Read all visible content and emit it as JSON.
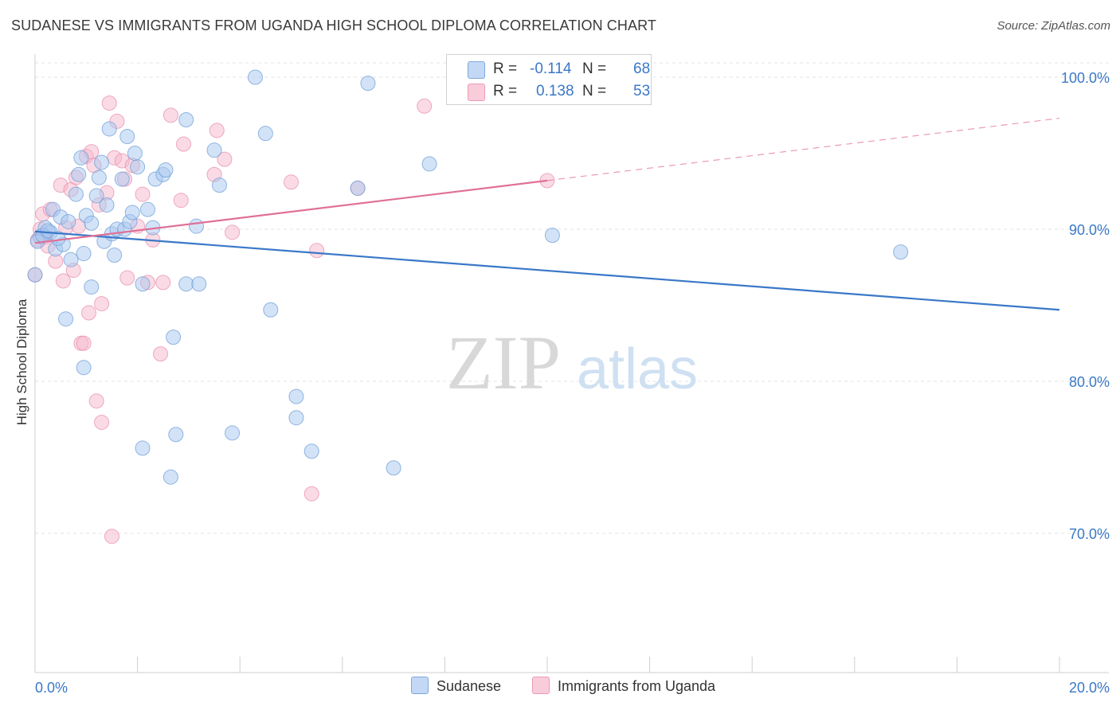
{
  "header": {
    "title": "SUDANESE VS IMMIGRANTS FROM UGANDA HIGH SCHOOL DIPLOMA CORRELATION CHART",
    "source": "Source: ZipAtlas.com"
  },
  "watermark": {
    "zip": "ZIP",
    "atlas": "atlas"
  },
  "legend": {
    "rows": [
      {
        "r_label": "R =",
        "r_value": "-0.114",
        "n_label": "N =",
        "n_value": "68",
        "color": "#a8c8f0"
      },
      {
        "r_label": "R =",
        "r_value": "0.138",
        "n_label": "N =",
        "n_value": "53",
        "color": "#f5b8cb"
      }
    ]
  },
  "bottom_legend": {
    "series1": "Sudanese",
    "series2": "Immigrants from Uganda"
  },
  "chart_data": {
    "type": "scatter",
    "title": "SUDANESE VS IMMIGRANTS FROM UGANDA HIGH SCHOOL DIPLOMA CORRELATION CHART",
    "xlabel": "",
    "ylabel": "High School Diploma",
    "xlim": [
      0,
      20
    ],
    "ylim": [
      60,
      102
    ],
    "x_tick_labels": [
      "0.0%",
      "20.0%"
    ],
    "y_ticks": [
      70,
      80,
      90,
      100
    ],
    "y_tick_labels": [
      "70.0%",
      "80.0%",
      "90.0%",
      "100.0%"
    ],
    "grid": true,
    "legend_position": "top-center",
    "colors": {
      "series1_fill": "#a8c8f0",
      "series1_line": "#3a78c8",
      "series2_fill": "#f5b8cb",
      "series2_line": "#e07098",
      "axis_text": "#3a78c8"
    },
    "series": [
      {
        "name": "Sudanese",
        "points": [
          [
            0.1,
            89.5
          ],
          [
            0.2,
            90.1
          ],
          [
            0.3,
            89.8
          ],
          [
            0.35,
            91.3
          ],
          [
            0.4,
            88.7
          ],
          [
            0.5,
            90.8
          ],
          [
            0.55,
            89.0
          ],
          [
            0.6,
            84.1
          ],
          [
            0.7,
            88.0
          ],
          [
            0.8,
            92.3
          ],
          [
            0.85,
            93.6
          ],
          [
            0.9,
            94.7
          ],
          [
            0.95,
            88.4
          ],
          [
            0.95,
            80.9
          ],
          [
            1.0,
            90.9
          ],
          [
            1.1,
            86.2
          ],
          [
            1.1,
            90.4
          ],
          [
            1.2,
            92.2
          ],
          [
            1.25,
            93.4
          ],
          [
            1.3,
            94.4
          ],
          [
            1.35,
            89.2
          ],
          [
            1.4,
            91.6
          ],
          [
            1.45,
            96.6
          ],
          [
            1.5,
            89.7
          ],
          [
            1.55,
            88.3
          ],
          [
            1.6,
            90.0
          ],
          [
            1.7,
            93.3
          ],
          [
            1.75,
            90.0
          ],
          [
            1.8,
            96.1
          ],
          [
            1.85,
            90.5
          ],
          [
            1.9,
            91.1
          ],
          [
            1.95,
            95.0
          ],
          [
            2.0,
            94.1
          ],
          [
            2.1,
            86.4
          ],
          [
            2.1,
            75.6
          ],
          [
            2.2,
            91.3
          ],
          [
            2.3,
            90.1
          ],
          [
            2.35,
            93.3
          ],
          [
            2.5,
            93.6
          ],
          [
            2.55,
            93.9
          ],
          [
            2.65,
            73.7
          ],
          [
            2.7,
            82.9
          ],
          [
            2.75,
            76.5
          ],
          [
            2.95,
            86.4
          ],
          [
            2.95,
            97.2
          ],
          [
            3.2,
            86.4
          ],
          [
            3.15,
            90.2
          ],
          [
            3.5,
            95.2
          ],
          [
            3.6,
            92.9
          ],
          [
            3.85,
            76.6
          ],
          [
            4.3,
            100.0
          ],
          [
            4.5,
            96.3
          ],
          [
            4.6,
            84.7
          ],
          [
            5.1,
            79.0
          ],
          [
            5.1,
            77.6
          ],
          [
            5.4,
            75.4
          ],
          [
            6.3,
            92.7
          ],
          [
            6.5,
            99.6
          ],
          [
            7.0,
            74.3
          ],
          [
            7.7,
            94.3
          ],
          [
            10.1,
            89.6
          ],
          [
            16.9,
            88.5
          ],
          [
            0.0,
            87.0
          ],
          [
            0.05,
            89.2
          ],
          [
            0.15,
            89.6
          ],
          [
            0.25,
            89.9
          ],
          [
            0.45,
            89.4
          ],
          [
            0.65,
            90.5
          ]
        ],
        "trend": {
          "x": [
            0,
            20
          ],
          "y": [
            89.85,
            84.7
          ]
        }
      },
      {
        "name": "Immigrants from Uganda",
        "points": [
          [
            0.0,
            87.0
          ],
          [
            0.05,
            89.3
          ],
          [
            0.1,
            90.0
          ],
          [
            0.15,
            91.0
          ],
          [
            0.2,
            89.5
          ],
          [
            0.25,
            88.9
          ],
          [
            0.3,
            91.3
          ],
          [
            0.4,
            87.9
          ],
          [
            0.5,
            92.9
          ],
          [
            0.55,
            86.6
          ],
          [
            0.6,
            90.1
          ],
          [
            0.7,
            92.6
          ],
          [
            0.75,
            87.3
          ],
          [
            0.8,
            93.4
          ],
          [
            0.85,
            90.2
          ],
          [
            0.9,
            82.5
          ],
          [
            0.95,
            82.5
          ],
          [
            1.0,
            94.8
          ],
          [
            1.05,
            84.5
          ],
          [
            1.1,
            95.1
          ],
          [
            1.15,
            94.2
          ],
          [
            1.2,
            78.7
          ],
          [
            1.25,
            91.6
          ],
          [
            1.3,
            77.3
          ],
          [
            1.3,
            85.1
          ],
          [
            1.4,
            92.4
          ],
          [
            1.45,
            98.3
          ],
          [
            1.55,
            94.7
          ],
          [
            1.5,
            69.8
          ],
          [
            1.6,
            97.1
          ],
          [
            1.7,
            94.5
          ],
          [
            1.75,
            93.3
          ],
          [
            1.8,
            86.8
          ],
          [
            1.9,
            94.2
          ],
          [
            2.0,
            90.2
          ],
          [
            2.1,
            92.3
          ],
          [
            2.2,
            86.5
          ],
          [
            2.3,
            89.3
          ],
          [
            2.45,
            81.8
          ],
          [
            2.5,
            86.5
          ],
          [
            2.65,
            97.5
          ],
          [
            2.85,
            91.9
          ],
          [
            2.9,
            95.6
          ],
          [
            3.5,
            93.6
          ],
          [
            3.55,
            96.5
          ],
          [
            3.7,
            94.6
          ],
          [
            3.85,
            89.8
          ],
          [
            5.0,
            93.1
          ],
          [
            5.5,
            88.6
          ],
          [
            5.4,
            72.6
          ],
          [
            6.3,
            92.7
          ],
          [
            7.6,
            98.1
          ],
          [
            10.0,
            93.2
          ]
        ],
        "trend": {
          "x": [
            0,
            10.0
          ],
          "y": [
            89.1,
            93.2
          ]
        },
        "trend_extension": {
          "x": [
            10.0,
            20
          ],
          "y": [
            93.2,
            97.3
          ]
        }
      }
    ]
  }
}
